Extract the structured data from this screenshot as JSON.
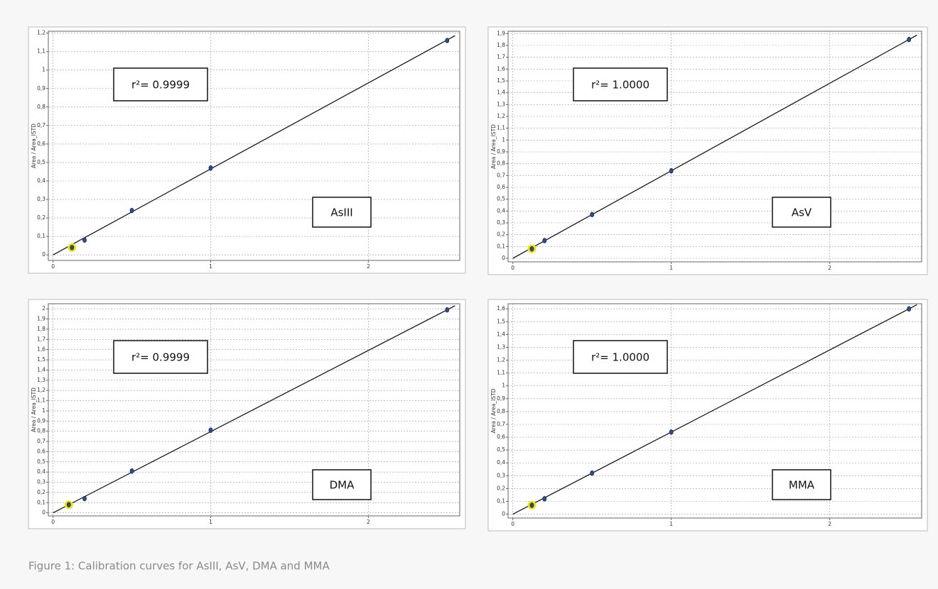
{
  "caption": "Figure 1: Calibration curves for AsIII, AsV, DMA and MMA",
  "chart_data": [
    {
      "type": "scatter",
      "y_label": "Area / Area_ISTD",
      "annotations": [
        "r²= 0.9999",
        "AsIII"
      ],
      "x": [
        0.12,
        0.2,
        0.5,
        1,
        2.5
      ],
      "values": [
        0.04,
        0.08,
        0.24,
        0.47,
        1.16
      ],
      "color": "#2a4d8f",
      "marker_halo": [
        "#f2e600",
        null,
        null,
        null,
        null
      ],
      "fit": {
        "x": [
          0,
          2.55
        ],
        "values": [
          0,
          1.186
        ],
        "color": "#1a1a1a"
      },
      "xlim": [
        -0.03,
        2.58
      ],
      "ylim": [
        -0.03,
        1.21
      ],
      "xticks": [
        0,
        1,
        2
      ],
      "grid": true,
      "yticks": [
        0,
        {
          "value": 0.1,
          "label": "0,1"
        },
        {
          "value": 0.2,
          "label": "0,2"
        },
        {
          "value": 0.3,
          "label": "0,3"
        },
        {
          "value": 0.4,
          "label": "0,4"
        },
        {
          "value": 0.5,
          "label": "0,5"
        },
        {
          "value": 0.6,
          "label": "0,6"
        },
        {
          "value": 0.7,
          "label": "0,7"
        },
        {
          "value": 0.8,
          "label": "0,8"
        },
        {
          "value": 0.9,
          "label": "0,9"
        },
        1,
        {
          "value": 1.1,
          "label": "1,1"
        },
        {
          "value": 1.2,
          "label": "1,2"
        }
      ]
    },
    {
      "type": "scatter",
      "y_label": "Area / Area_ISTD",
      "annotations": [
        "r²= 1.0000",
        "AsV"
      ],
      "x": [
        0.12,
        0.2,
        0.5,
        1,
        2.5
      ],
      "values": [
        0.08,
        0.15,
        0.37,
        0.74,
        1.85
      ],
      "color": "#2a4d8f",
      "marker_halo": [
        "#f2e600",
        null,
        null,
        null,
        null
      ],
      "fit": {
        "x": [
          0,
          2.55
        ],
        "values": [
          0,
          1.887
        ],
        "color": "#1a1a1a"
      },
      "xlim": [
        -0.03,
        2.58
      ],
      "ylim": [
        -0.03,
        1.92
      ],
      "xticks": [
        0,
        1,
        2
      ],
      "grid": true,
      "yticks": [
        0,
        {
          "value": 0.1,
          "label": "0,1"
        },
        {
          "value": 0.2,
          "label": "0,2"
        },
        {
          "value": 0.3,
          "label": "0,3"
        },
        {
          "value": 0.4,
          "label": "0,4"
        },
        {
          "value": 0.5,
          "label": "0,5"
        },
        {
          "value": 0.6,
          "label": "0,6"
        },
        {
          "value": 0.7,
          "label": "0,7"
        },
        {
          "value": 0.8,
          "label": "0,8"
        },
        {
          "value": 0.9,
          "label": "0,9"
        },
        1,
        {
          "value": 1.1,
          "label": "1,1"
        },
        {
          "value": 1.2,
          "label": "1,2"
        },
        {
          "value": 1.3,
          "label": "1,3"
        },
        {
          "value": 1.4,
          "label": "1,4"
        },
        {
          "value": 1.5,
          "label": "1,5"
        },
        {
          "value": 1.6,
          "label": "1,6"
        },
        {
          "value": 1.7,
          "label": "1,7"
        },
        {
          "value": 1.8,
          "label": "1,8"
        },
        {
          "value": 1.9,
          "label": "1,9"
        }
      ]
    },
    {
      "type": "scatter",
      "y_label": "Area / Area_ISTD",
      "annotations": [
        "r²= 0.9999",
        "DMA"
      ],
      "x": [
        0.1,
        0.2,
        0.5,
        1,
        2.5
      ],
      "values": [
        0.08,
        0.14,
        0.41,
        0.81,
        1.99
      ],
      "color": "#2a4d8f",
      "marker_halo": [
        "#f2e600",
        null,
        null,
        null,
        null
      ],
      "fit": {
        "x": [
          0,
          2.55
        ],
        "values": [
          0,
          2.03
        ],
        "color": "#1a1a1a"
      },
      "xlim": [
        -0.03,
        2.58
      ],
      "ylim": [
        -0.03,
        2.05
      ],
      "xticks": [
        0,
        1,
        2
      ],
      "grid": true,
      "yticks": [
        0,
        {
          "value": 0.1,
          "label": "0,1"
        },
        {
          "value": 0.2,
          "label": "0,2"
        },
        {
          "value": 0.3,
          "label": "0,3"
        },
        {
          "value": 0.4,
          "label": "0,4"
        },
        {
          "value": 0.5,
          "label": "0,5"
        },
        {
          "value": 0.6,
          "label": "0,6"
        },
        {
          "value": 0.7,
          "label": "0,7"
        },
        {
          "value": 0.8,
          "label": "0,8"
        },
        {
          "value": 0.9,
          "label": "0,9"
        },
        1,
        {
          "value": 1.1,
          "label": "1,1"
        },
        {
          "value": 1.2,
          "label": "1,2"
        },
        {
          "value": 1.3,
          "label": "1,3"
        },
        {
          "value": 1.4,
          "label": "1,4"
        },
        {
          "value": 1.5,
          "label": "1,5"
        },
        {
          "value": 1.6,
          "label": "1,6"
        },
        {
          "value": 1.7,
          "label": "1,7"
        },
        {
          "value": 1.8,
          "label": "1,8"
        },
        {
          "value": 1.9,
          "label": "1,9"
        },
        2
      ]
    },
    {
      "type": "scatter",
      "y_label": "Area / Area_ISTD",
      "annotations": [
        "r²= 1.0000",
        "MMA"
      ],
      "x": [
        0.12,
        0.2,
        0.5,
        1,
        2.5
      ],
      "values": [
        0.07,
        0.12,
        0.32,
        0.64,
        1.6
      ],
      "color": "#2a4d8f",
      "marker_halo": [
        "#f2e600",
        null,
        null,
        null,
        null
      ],
      "fit": {
        "x": [
          0,
          2.55
        ],
        "values": [
          0,
          1.632
        ],
        "color": "#1a1a1a"
      },
      "xlim": [
        -0.03,
        2.58
      ],
      "ylim": [
        -0.03,
        1.64
      ],
      "xticks": [
        0,
        1,
        2
      ],
      "grid": true,
      "yticks": [
        0,
        {
          "value": 0.1,
          "label": "0,1"
        },
        {
          "value": 0.2,
          "label": "0,2"
        },
        {
          "value": 0.3,
          "label": "0,3"
        },
        {
          "value": 0.4,
          "label": "0,4"
        },
        {
          "value": 0.5,
          "label": "0,5"
        },
        {
          "value": 0.6,
          "label": "0,6"
        },
        {
          "value": 0.7,
          "label": "0,7"
        },
        {
          "value": 0.8,
          "label": "0,8"
        },
        {
          "value": 0.9,
          "label": "0,9"
        },
        1,
        {
          "value": 1.1,
          "label": "1,1"
        },
        {
          "value": 1.2,
          "label": "1,2"
        },
        {
          "value": 1.3,
          "label": "1,3"
        },
        {
          "value": 1.4,
          "label": "1,4"
        },
        {
          "value": 1.5,
          "label": "1,5"
        },
        {
          "value": 1.6,
          "label": "1,6"
        }
      ]
    }
  ]
}
